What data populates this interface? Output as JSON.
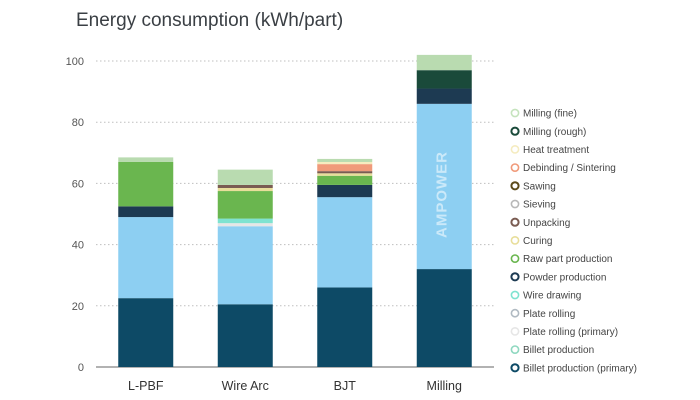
{
  "chart_data": {
    "type": "bar",
    "stacked": true,
    "title": "Energy consumption (kWh/part)",
    "xlabel": "",
    "ylabel": "",
    "ylim": [
      0,
      100
    ],
    "yticks": [
      0,
      20,
      40,
      60,
      80,
      100
    ],
    "grid": true,
    "legend_position": "right",
    "watermark": "AMPOWER",
    "categories": [
      "L-PBF",
      "Wire Arc",
      "BJT",
      "Milling"
    ],
    "series": [
      {
        "name": "Billet production (primary)",
        "color": "#0d4a66",
        "values": [
          22.5,
          20.5,
          26,
          32
        ]
      },
      {
        "name": "Billet production",
        "color": "#8fd8c0",
        "values": [
          0,
          0,
          0,
          0
        ]
      },
      {
        "name": "Plate rolling (primary)",
        "color": "#e6e6e6",
        "values": [
          0,
          1,
          0,
          0
        ]
      },
      {
        "name": "Plate rolling",
        "color": "#b0bac2",
        "values": [
          0,
          0,
          0,
          0
        ]
      },
      {
        "name": "Wire drawing",
        "color": "#7fe3d0",
        "values": [
          0,
          1.5,
          0,
          0
        ]
      },
      {
        "name": "Powder production",
        "color": "#1d3a52",
        "values": [
          3.5,
          0,
          4,
          5
        ]
      },
      {
        "name": "Raw part production",
        "color": "#6ab64f",
        "values": [
          14.5,
          9,
          3,
          0
        ]
      },
      {
        "name": "Curing",
        "color": "#e8de9a",
        "values": [
          0,
          1,
          0.8,
          0
        ]
      },
      {
        "name": "Unpacking",
        "color": "#7a5c52",
        "values": [
          0,
          1,
          0.7,
          0
        ]
      },
      {
        "name": "Sieving",
        "color": "#b8b8b8",
        "values": [
          0,
          0,
          0,
          0
        ]
      },
      {
        "name": "Sawing",
        "color": "#5b4a1a",
        "values": [
          0,
          0,
          0,
          0
        ]
      },
      {
        "name": "Debinding / Sintering",
        "color": "#f09a7a",
        "values": [
          0,
          0,
          2.3,
          0
        ]
      },
      {
        "name": "Heat treatment",
        "color": "#f5ecc0",
        "values": [
          0,
          0,
          0.7,
          0
        ]
      },
      {
        "name": "Milling (rough)",
        "color": "#1a4a3a",
        "values": [
          0,
          0,
          0,
          6
        ]
      },
      {
        "name": "Milling (fine)",
        "color": "#b9dbb0",
        "values": [
          1.5,
          5,
          1,
          5
        ]
      }
    ],
    "bar_section_overrides": {
      "Billet production (primary)": {
        "color": "#0d4a66"
      },
      "middle_body_color": "#8dcff2"
    },
    "light_blue_body": {
      "name": "",
      "color": "#8dcff2",
      "values": [
        26.5,
        25.5,
        29.5,
        54
      ]
    },
    "legend": [
      {
        "name": "Milling (fine)",
        "color": "#c5e3bd"
      },
      {
        "name": "Milling (rough)",
        "color": "#1a4a3a"
      },
      {
        "name": "Heat treatment",
        "color": "#f5ecc0"
      },
      {
        "name": "Debinding / Sintering",
        "color": "#f09a7a"
      },
      {
        "name": "Sawing",
        "color": "#5b4a1a"
      },
      {
        "name": "Sieving",
        "color": "#b8b8b8"
      },
      {
        "name": "Unpacking",
        "color": "#7a5c52"
      },
      {
        "name": "Curing",
        "color": "#e8de9a"
      },
      {
        "name": "Raw part production",
        "color": "#6ab64f"
      },
      {
        "name": "Powder production",
        "color": "#1d3a52"
      },
      {
        "name": "Wire drawing",
        "color": "#7fe3d0"
      },
      {
        "name": "Plate rolling",
        "color": "#b0bac2"
      },
      {
        "name": "Plate rolling (primary)",
        "color": "#e6e6e6"
      },
      {
        "name": "Billet production",
        "color": "#8fd8c0"
      },
      {
        "name": "Billet production (primary)",
        "color": "#0d4a66"
      }
    ]
  }
}
